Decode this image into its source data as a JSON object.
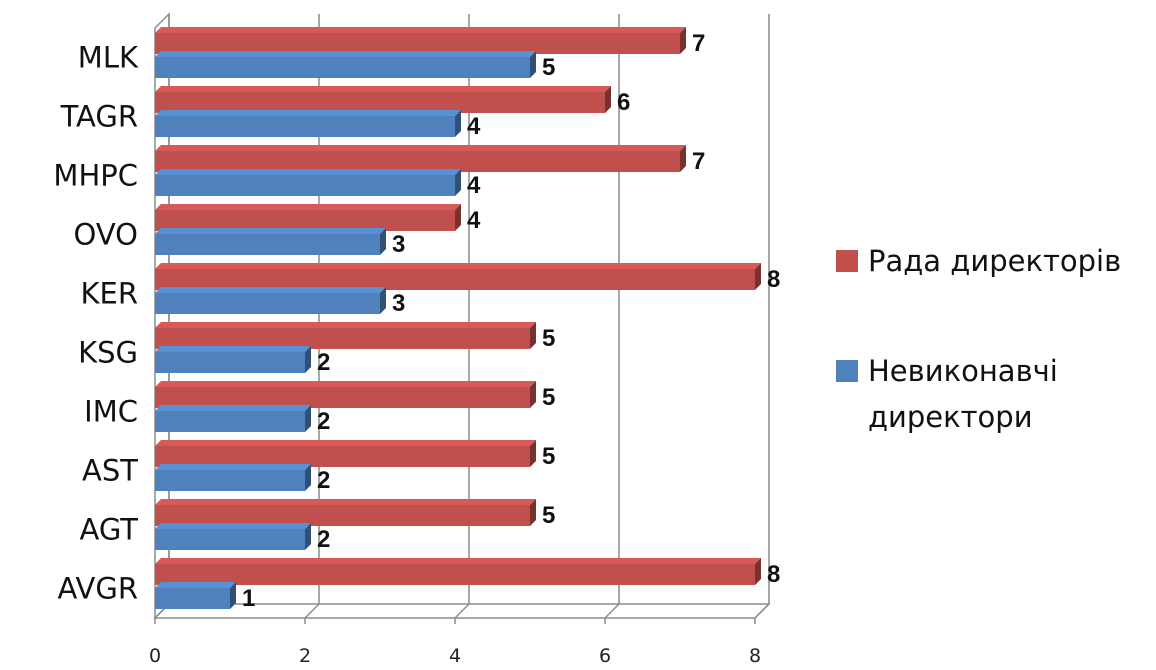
{
  "chart_data": {
    "type": "bar",
    "orientation": "horizontal",
    "style": "3d-clustered",
    "categories": [
      "MLK",
      "TAGR",
      "MHPC",
      "OVO",
      "KER",
      "KSG",
      "IMC",
      "AST",
      "AGT",
      "AVGR"
    ],
    "series": [
      {
        "name": "Рада директорів",
        "color": "#C0504D",
        "values": [
          7,
          6,
          7,
          4,
          8,
          5,
          5,
          5,
          5,
          8
        ]
      },
      {
        "name": "Невиконавчі директори",
        "color": "#4F81BD",
        "values": [
          5,
          4,
          4,
          3,
          3,
          2,
          2,
          2,
          2,
          1
        ]
      }
    ],
    "xticks": [
      "0",
      "2",
      "4",
      "6",
      "8"
    ],
    "xlim": [
      0,
      8
    ],
    "grid": true,
    "legend": "right",
    "data_labels": true
  },
  "legend": {
    "items": [
      {
        "name": "Рада директорів",
        "lines": [
          "Рада директорів"
        ],
        "color": "#C0504D"
      },
      {
        "name": "Невиконавчі директори",
        "lines": [
          "Невиконавчі",
          "директори"
        ],
        "color": "#4F81BD"
      }
    ]
  }
}
